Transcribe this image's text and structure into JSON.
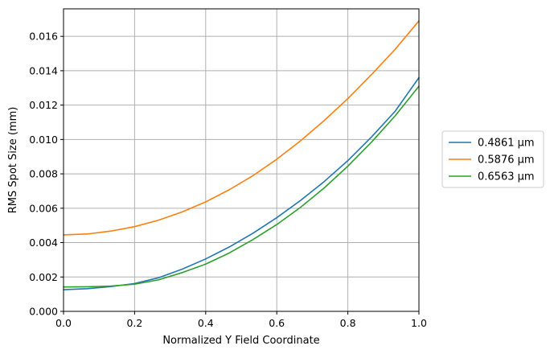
{
  "chart_data": {
    "type": "line",
    "title": "",
    "xlabel": "Normalized Y Field Coordinate",
    "ylabel": "RMS Spot Size (mm)",
    "xlim": [
      0.0,
      1.0
    ],
    "ylim": [
      0.0,
      0.0176
    ],
    "xticks": [
      "0.0",
      "0.2",
      "0.4",
      "0.6",
      "0.8",
      "1.0"
    ],
    "yticks": [
      "0.000",
      "0.002",
      "0.004",
      "0.006",
      "0.008",
      "0.010",
      "0.012",
      "0.014",
      "0.016"
    ],
    "grid": true,
    "legend_position": "right, outside plot",
    "x": [
      0.0,
      0.0667,
      0.1333,
      0.2,
      0.2667,
      0.3333,
      0.4,
      0.4667,
      0.5333,
      0.6,
      0.6667,
      0.7333,
      0.8,
      0.8667,
      0.9333,
      1.0
    ],
    "series": [
      {
        "name": "0.4861 µm",
        "color": "#1f77b4",
        "values": [
          0.00126,
          0.00132,
          0.00144,
          0.00162,
          0.00195,
          0.00245,
          0.00305,
          0.00375,
          0.00455,
          0.00545,
          0.00645,
          0.00755,
          0.00877,
          0.01015,
          0.01165,
          0.0136
        ]
      },
      {
        "name": "0.5876 µm",
        "color": "#ff7f0e",
        "values": [
          0.00445,
          0.0045,
          0.00467,
          0.00493,
          0.0053,
          0.00578,
          0.00637,
          0.00708,
          0.0079,
          0.00885,
          0.00992,
          0.0111,
          0.01238,
          0.01378,
          0.01525,
          0.0169
        ]
      },
      {
        "name": "0.6563 µm",
        "color": "#2ca02c",
        "values": [
          0.00142,
          0.00143,
          0.00147,
          0.00158,
          0.00183,
          0.00225,
          0.00275,
          0.0034,
          0.00418,
          0.00505,
          0.00605,
          0.00718,
          0.00845,
          0.00985,
          0.01138,
          0.0131
        ]
      }
    ]
  }
}
